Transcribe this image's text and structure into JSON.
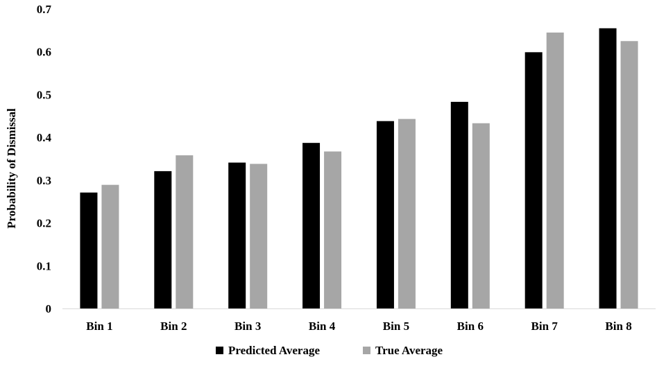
{
  "chart_data": {
    "type": "bar",
    "title": "",
    "xlabel": "",
    "ylabel": "Probability of Dismissal",
    "categories": [
      "Bin 1",
      "Bin 2",
      "Bin 3",
      "Bin 4",
      "Bin 5",
      "Bin 6",
      "Bin 7",
      "Bin 8"
    ],
    "series": [
      {
        "name": "Predicted Average",
        "color": "#000000",
        "values": [
          0.271,
          0.321,
          0.341,
          0.387,
          0.438,
          0.483,
          0.599,
          0.655
        ]
      },
      {
        "name": "True Average",
        "color": "#a6a6a6",
        "values": [
          0.289,
          0.358,
          0.338,
          0.367,
          0.443,
          0.433,
          0.645,
          0.625
        ]
      }
    ],
    "ylim": [
      0,
      0.7
    ],
    "yticks": [
      0,
      0.1,
      0.2,
      0.3,
      0.4,
      0.5,
      0.6,
      0.7
    ],
    "ytick_labels": [
      "0",
      "0.1",
      "0.2",
      "0.3",
      "0.4",
      "0.5",
      "0.6",
      "0.7"
    ],
    "grid": false,
    "legend_position": "bottom"
  }
}
